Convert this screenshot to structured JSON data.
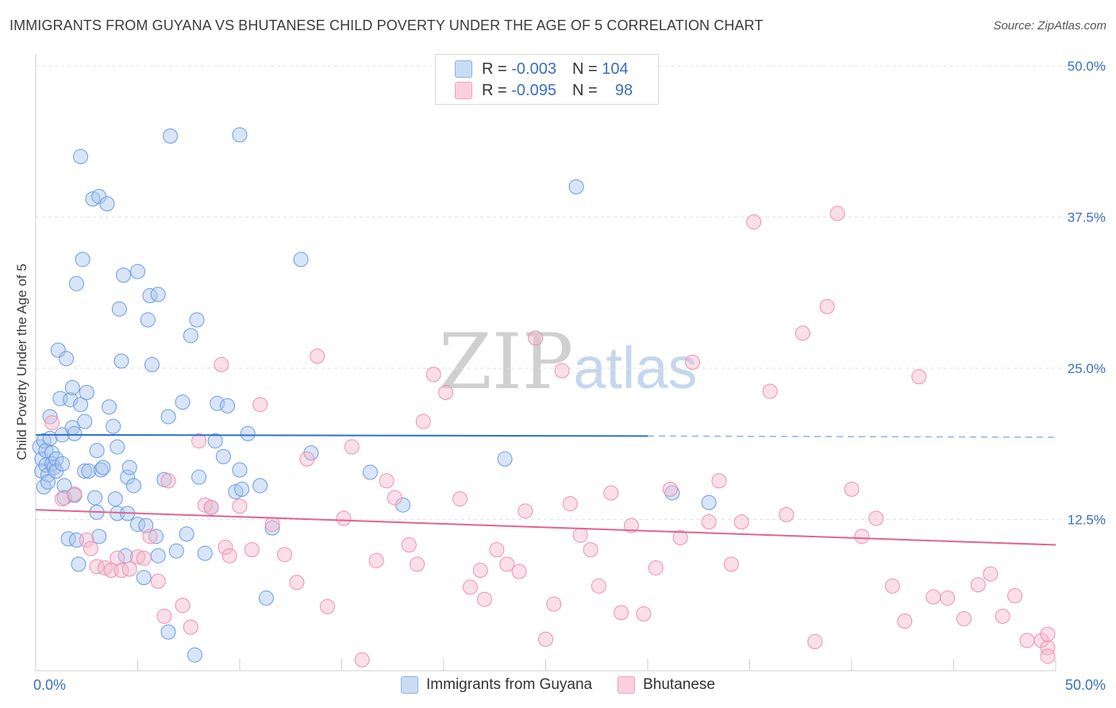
{
  "title": "IMMIGRANTS FROM GUYANA VS BHUTANESE CHILD POVERTY UNDER THE AGE OF 5 CORRELATION CHART",
  "source": "Source: ZipAtlas.com",
  "watermark": {
    "zip": "ZIP",
    "atlas": "atlas"
  },
  "legend": [
    {
      "r_label": "R =",
      "r_value": "-0.003",
      "n_label": "N =",
      "n_value": "104",
      "color": "#a8c6ef"
    },
    {
      "r_label": "R =",
      "r_value": "-0.095",
      "n_label": "N =",
      "n_value": "98",
      "color": "#f5b8cb"
    }
  ],
  "bottom_legend": [
    {
      "label": "Immigrants from Guyana",
      "color": "#a8c6ef"
    },
    {
      "label": "Bhutanese",
      "color": "#f5b8cb"
    }
  ],
  "chart_data": {
    "type": "scatter",
    "xlabel": "",
    "ylabel": "Child Poverty Under the Age of 5",
    "xlim": [
      0,
      50
    ],
    "ylim": [
      0,
      50
    ],
    "x_tick_labels": [
      "0.0%",
      "50.0%"
    ],
    "y_ticks": [
      12.5,
      25.0,
      37.5,
      50.0
    ],
    "y_tick_labels": [
      "12.5%",
      "25.0%",
      "37.5%",
      "50.0%"
    ],
    "grid": true,
    "series": [
      {
        "name": "Immigrants from Guyana",
        "color": "#6a9be0",
        "trend": {
          "x": [
            0,
            30
          ],
          "y": [
            19.5,
            19.4
          ],
          "dash_to": [
            50,
            19.3
          ]
        },
        "points": [
          [
            0.2,
            18.5
          ],
          [
            0.3,
            17.5
          ],
          [
            0.3,
            16.5
          ],
          [
            0.4,
            15.2
          ],
          [
            0.4,
            19.0
          ],
          [
            0.5,
            18.2
          ],
          [
            0.5,
            17.0
          ],
          [
            0.6,
            16.2
          ],
          [
            0.6,
            15.6
          ],
          [
            0.7,
            21.0
          ],
          [
            0.7,
            19.2
          ],
          [
            0.8,
            18.0
          ],
          [
            0.8,
            17.1
          ],
          [
            0.9,
            16.8
          ],
          [
            1.0,
            17.5
          ],
          [
            1.0,
            16.5
          ],
          [
            1.1,
            26.5
          ],
          [
            1.2,
            22.5
          ],
          [
            1.3,
            19.5
          ],
          [
            1.3,
            17.1
          ],
          [
            1.4,
            15.3
          ],
          [
            1.4,
            14.3
          ],
          [
            1.5,
            25.8
          ],
          [
            1.6,
            10.9
          ],
          [
            1.7,
            22.4
          ],
          [
            1.8,
            20.1
          ],
          [
            1.8,
            23.4
          ],
          [
            1.9,
            19.6
          ],
          [
            1.9,
            14.5
          ],
          [
            2.0,
            32.0
          ],
          [
            2.0,
            10.8
          ],
          [
            2.1,
            8.8
          ],
          [
            2.2,
            42.5
          ],
          [
            2.2,
            22.0
          ],
          [
            2.3,
            34.0
          ],
          [
            2.4,
            20.6
          ],
          [
            2.4,
            16.5
          ],
          [
            2.5,
            23.0
          ],
          [
            2.6,
            16.5
          ],
          [
            2.8,
            39.0
          ],
          [
            2.9,
            14.3
          ],
          [
            3.0,
            18.2
          ],
          [
            3.0,
            13.1
          ],
          [
            3.1,
            39.2
          ],
          [
            3.1,
            11.1
          ],
          [
            3.2,
            16.6
          ],
          [
            3.3,
            16.8
          ],
          [
            3.5,
            38.6
          ],
          [
            3.6,
            21.8
          ],
          [
            3.8,
            20.2
          ],
          [
            3.9,
            14.2
          ],
          [
            4.0,
            13.0
          ],
          [
            4.0,
            18.5
          ],
          [
            4.1,
            29.9
          ],
          [
            4.2,
            25.6
          ],
          [
            4.3,
            32.7
          ],
          [
            4.4,
            9.5
          ],
          [
            4.5,
            16.0
          ],
          [
            4.5,
            13.0
          ],
          [
            4.6,
            16.8
          ],
          [
            4.8,
            15.3
          ],
          [
            5.0,
            33.0
          ],
          [
            5.0,
            12.1
          ],
          [
            5.3,
            7.7
          ],
          [
            5.4,
            12.0
          ],
          [
            5.5,
            29.0
          ],
          [
            5.6,
            31.0
          ],
          [
            5.7,
            25.3
          ],
          [
            5.9,
            11.1
          ],
          [
            6.0,
            9.5
          ],
          [
            6.0,
            31.1
          ],
          [
            6.3,
            15.8
          ],
          [
            6.5,
            21.0
          ],
          [
            6.5,
            3.2
          ],
          [
            6.6,
            44.2
          ],
          [
            6.9,
            9.9
          ],
          [
            7.2,
            22.2
          ],
          [
            7.4,
            11.3
          ],
          [
            7.6,
            27.7
          ],
          [
            7.8,
            1.3
          ],
          [
            7.9,
            29.0
          ],
          [
            8.0,
            16.0
          ],
          [
            8.3,
            9.7
          ],
          [
            8.6,
            13.5
          ],
          [
            8.8,
            19.0
          ],
          [
            8.9,
            22.1
          ],
          [
            9.2,
            17.7
          ],
          [
            9.4,
            21.9
          ],
          [
            9.8,
            14.8
          ],
          [
            10.0,
            44.3
          ],
          [
            10.0,
            16.6
          ],
          [
            10.1,
            15.0
          ],
          [
            10.4,
            19.6
          ],
          [
            11.0,
            15.3
          ],
          [
            11.3,
            6.0
          ],
          [
            11.6,
            11.8
          ],
          [
            13.0,
            34.0
          ],
          [
            13.5,
            18.0
          ],
          [
            16.4,
            16.4
          ],
          [
            18.0,
            13.7
          ],
          [
            23.0,
            17.5
          ],
          [
            26.5,
            40.0
          ],
          [
            31.2,
            14.7
          ],
          [
            33.0,
            13.9
          ]
        ]
      },
      {
        "name": "Bhutanese",
        "color": "#ee8fae",
        "trend": {
          "x": [
            0,
            50
          ],
          "y": [
            13.3,
            10.4
          ]
        },
        "points": [
          [
            0.8,
            20.5
          ],
          [
            1.3,
            14.2
          ],
          [
            1.9,
            14.6
          ],
          [
            2.5,
            10.8
          ],
          [
            2.7,
            10.1
          ],
          [
            3.0,
            8.6
          ],
          [
            3.4,
            8.5
          ],
          [
            3.7,
            8.3
          ],
          [
            4.0,
            9.3
          ],
          [
            4.2,
            8.3
          ],
          [
            4.6,
            8.4
          ],
          [
            5.0,
            9.4
          ],
          [
            5.3,
            9.3
          ],
          [
            5.6,
            11.1
          ],
          [
            6.0,
            7.4
          ],
          [
            6.3,
            4.5
          ],
          [
            6.5,
            15.7
          ],
          [
            7.2,
            5.4
          ],
          [
            7.6,
            3.6
          ],
          [
            8.0,
            19.0
          ],
          [
            8.3,
            13.7
          ],
          [
            8.6,
            13.5
          ],
          [
            9.1,
            25.3
          ],
          [
            9.3,
            10.2
          ],
          [
            9.5,
            9.5
          ],
          [
            10.0,
            13.6
          ],
          [
            10.6,
            10.0
          ],
          [
            11.0,
            22.0
          ],
          [
            11.6,
            12.1
          ],
          [
            12.2,
            9.6
          ],
          [
            12.8,
            7.3
          ],
          [
            13.3,
            17.5
          ],
          [
            13.8,
            26.0
          ],
          [
            14.3,
            5.3
          ],
          [
            15.1,
            12.6
          ],
          [
            15.5,
            18.5
          ],
          [
            16.0,
            0.9
          ],
          [
            16.7,
            9.1
          ],
          [
            17.2,
            15.7
          ],
          [
            17.6,
            14.3
          ],
          [
            18.3,
            10.4
          ],
          [
            18.7,
            8.8
          ],
          [
            19.0,
            20.6
          ],
          [
            19.5,
            24.5
          ],
          [
            20.1,
            23.0
          ],
          [
            20.8,
            14.2
          ],
          [
            21.3,
            6.9
          ],
          [
            21.8,
            8.3
          ],
          [
            22.0,
            5.9
          ],
          [
            22.6,
            10.0
          ],
          [
            23.1,
            8.8
          ],
          [
            23.7,
            8.2
          ],
          [
            24.0,
            13.2
          ],
          [
            24.5,
            27.5
          ],
          [
            25.0,
            2.6
          ],
          [
            25.4,
            5.5
          ],
          [
            25.8,
            24.8
          ],
          [
            26.2,
            13.8
          ],
          [
            26.7,
            11.2
          ],
          [
            27.2,
            10.0
          ],
          [
            27.6,
            7.0
          ],
          [
            28.2,
            14.7
          ],
          [
            28.7,
            4.8
          ],
          [
            29.2,
            12.0
          ],
          [
            29.8,
            4.7
          ],
          [
            30.4,
            8.5
          ],
          [
            31.1,
            15.0
          ],
          [
            31.6,
            11.0
          ],
          [
            32.2,
            25.5
          ],
          [
            33.0,
            12.3
          ],
          [
            33.5,
            15.7
          ],
          [
            34.1,
            8.8
          ],
          [
            34.6,
            12.3
          ],
          [
            35.2,
            37.1
          ],
          [
            36.0,
            23.1
          ],
          [
            36.8,
            12.9
          ],
          [
            37.6,
            27.9
          ],
          [
            38.2,
            2.4
          ],
          [
            38.8,
            30.1
          ],
          [
            39.3,
            37.8
          ],
          [
            40.0,
            15.0
          ],
          [
            40.5,
            11.1
          ],
          [
            41.2,
            12.6
          ],
          [
            42.0,
            7.0
          ],
          [
            42.6,
            4.1
          ],
          [
            43.3,
            24.3
          ],
          [
            44.0,
            6.1
          ],
          [
            44.7,
            6.0
          ],
          [
            45.5,
            4.3
          ],
          [
            46.2,
            7.1
          ],
          [
            46.8,
            8.0
          ],
          [
            47.4,
            4.5
          ],
          [
            48.0,
            6.2
          ],
          [
            48.6,
            2.5
          ],
          [
            49.3,
            2.5
          ],
          [
            50.0,
            1.9
          ],
          [
            51.5,
            1.2
          ],
          [
            52.0,
            3.0
          ]
        ]
      }
    ]
  }
}
